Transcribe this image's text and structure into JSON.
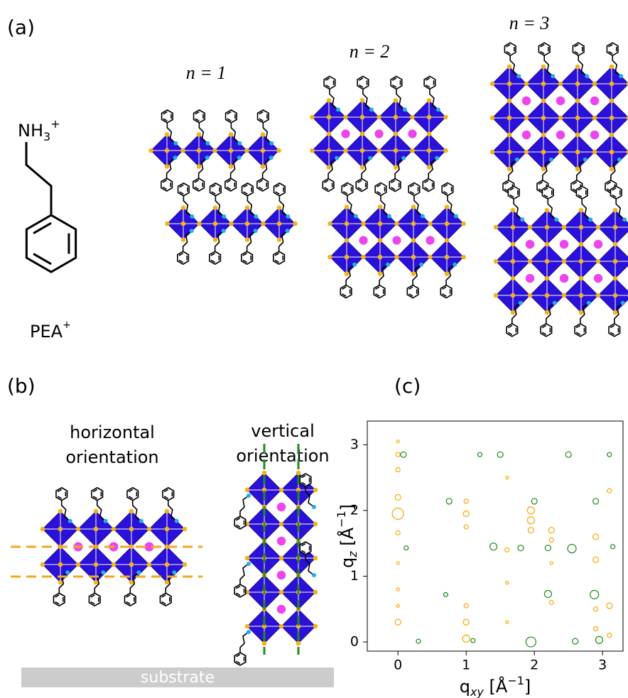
{
  "panels": {
    "a": {
      "label": "(a)",
      "molecule": {
        "formula": [
          "NH",
          "3",
          "+"
        ],
        "name": [
          "PEA",
          "+"
        ]
      },
      "structures": [
        {
          "label": "n = 1"
        },
        {
          "label": "n = 2"
        },
        {
          "label": "n = 3"
        }
      ]
    },
    "b": {
      "label": "(b)",
      "horizontal": [
        "horizontal",
        "orientation"
      ],
      "vertical": [
        "vertical",
        "orientation"
      ],
      "substrate": "substrate"
    }
  },
  "chart_data": {
    "type": "scatter",
    "label": "(c)",
    "xlabel": [
      "q",
      "xy",
      " [Å",
      "−1",
      "]"
    ],
    "ylabel": [
      "q",
      "z",
      " [Å",
      "−1",
      "]"
    ],
    "xlim": [
      -0.45,
      3.3
    ],
    "ylim": [
      -0.14,
      3.36
    ],
    "xticks": [
      0,
      1,
      2,
      3
    ],
    "yticks": [
      0,
      1,
      2,
      3
    ],
    "series": [
      {
        "color": "#ffa500",
        "x": [
          0,
          0,
          0,
          0,
          0,
          0,
          0,
          0,
          0,
          0,
          1,
          1,
          1,
          1,
          1,
          1,
          1.6,
          1.6,
          1.6,
          1.6,
          1.95,
          1.95,
          1.95,
          2.25,
          2.25,
          2.25,
          2.25,
          2.9,
          2.9,
          2.9,
          2.9,
          3.1,
          3.1,
          3.1
        ],
        "values": [
          3.05,
          2.85,
          2.62,
          2.2,
          1.95,
          1.66,
          1.2,
          0.8,
          0.55,
          0.3,
          2.14,
          1.95,
          1.75,
          0.55,
          0.3,
          0.05,
          2.5,
          1.4,
          0.9,
          0.3,
          2.0,
          1.85,
          1.7,
          1.7,
          1.55,
          1.2,
          0.6,
          1.6,
          1.25,
          0.5,
          0.2,
          2.3,
          0.55,
          0.1
        ],
        "sizes": [
          2,
          3,
          3,
          4,
          8,
          3,
          2,
          2,
          2,
          4,
          3,
          4,
          3,
          3,
          4,
          5,
          2,
          3,
          2,
          2,
          5,
          5,
          4,
          4,
          3,
          2,
          3,
          4,
          4,
          3,
          3,
          3,
          4,
          3
        ]
      },
      {
        "color": "#1a8a1a",
        "x": [
          0.08,
          0.3,
          0.75,
          0.7,
          0.12,
          1.4,
          1.5,
          1.1,
          1.95,
          2.0,
          2.2,
          2.2,
          2.5,
          2.55,
          2.9,
          2.88,
          2.95,
          3.1,
          3.15,
          1.8,
          1.2,
          2.6
        ],
        "values": [
          2.85,
          0.01,
          2.14,
          0.72,
          1.43,
          1.45,
          2.85,
          0.02,
          0.0,
          2.14,
          0.73,
          1.43,
          2.85,
          1.42,
          2.14,
          0.72,
          0.03,
          2.85,
          1.45,
          1.43,
          2.85,
          0.01
        ],
        "sizes": [
          4,
          3,
          4,
          3,
          3,
          5,
          4,
          3,
          7,
          4,
          5,
          4,
          4,
          6,
          4,
          6,
          5,
          3,
          3,
          4,
          3,
          4
        ]
      }
    ]
  }
}
